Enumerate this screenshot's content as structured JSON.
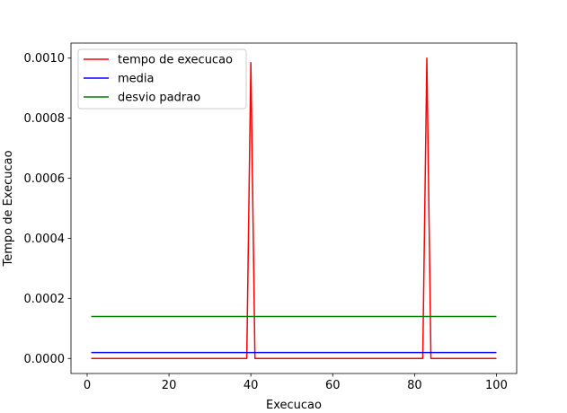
{
  "chart_data": {
    "type": "line",
    "title": "",
    "xlabel": "Execucao",
    "ylabel": "Tempo de Execucao",
    "xlim": [
      -3.95,
      104.95
    ],
    "ylim": [
      -5e-05,
      0.00105
    ],
    "x_ticks": [
      0,
      20,
      40,
      60,
      80,
      100
    ],
    "x_tick_labels": [
      "0",
      "20",
      "40",
      "60",
      "80",
      "100"
    ],
    "y_ticks": [
      0,
      0.0002,
      0.0004,
      0.0006,
      0.0008,
      0.001
    ],
    "y_tick_labels": [
      "0.0000",
      "0.0002",
      "0.0004",
      "0.0006",
      "0.0008",
      "0.0010"
    ],
    "grid": false,
    "legend_position": "upper-left",
    "series": [
      {
        "name": "tempo de execucao",
        "color": "#ff0000",
        "points": [
          [
            1,
            0
          ],
          [
            39,
            0
          ],
          [
            40,
            0.000985
          ],
          [
            41,
            0
          ],
          [
            82,
            0
          ],
          [
            83,
            0.001
          ],
          [
            84,
            0
          ],
          [
            100,
            0
          ]
        ]
      },
      {
        "name": "media",
        "color": "#0000ff",
        "points": [
          [
            1,
            2e-05
          ],
          [
            100,
            2e-05
          ]
        ]
      },
      {
        "name": "desvio padrao",
        "color": "#008000",
        "points": [
          [
            1,
            0.00014
          ],
          [
            100,
            0.00014
          ]
        ]
      }
    ]
  }
}
